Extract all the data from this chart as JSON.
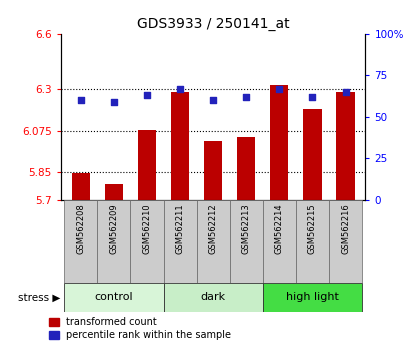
{
  "title": "GDS3933 / 250141_at",
  "samples": [
    "GSM562208",
    "GSM562209",
    "GSM562210",
    "GSM562211",
    "GSM562212",
    "GSM562213",
    "GSM562214",
    "GSM562215",
    "GSM562216"
  ],
  "red_values": [
    5.845,
    5.785,
    6.08,
    6.285,
    6.02,
    6.04,
    6.32,
    6.19,
    6.285
  ],
  "blue_values": [
    60,
    59,
    63,
    67,
    60,
    62,
    67,
    62,
    65
  ],
  "ylim_left": [
    5.7,
    6.6
  ],
  "ylim_right": [
    0,
    100
  ],
  "yticks_left": [
    5.7,
    5.85,
    6.075,
    6.3,
    6.6
  ],
  "ytick_labels_left": [
    "5.7",
    "5.85",
    "6.075",
    "6.3",
    "6.6"
  ],
  "yticks_right": [
    0,
    25,
    50,
    75,
    100
  ],
  "ytick_labels_right": [
    "0",
    "25",
    "50",
    "75",
    "100%"
  ],
  "grid_lines": [
    5.85,
    6.075,
    6.3
  ],
  "groups": [
    {
      "label": "control",
      "indices": [
        0,
        1,
        2
      ],
      "color": "#d8f5d8"
    },
    {
      "label": "dark",
      "indices": [
        3,
        4,
        5
      ],
      "color": "#c8eec8"
    },
    {
      "label": "high light",
      "indices": [
        6,
        7,
        8
      ],
      "color": "#44dd44"
    }
  ],
  "bar_color": "#bb0000",
  "dot_color": "#2222bb",
  "bar_width": 0.55,
  "label_red": "transformed count",
  "label_blue": "percentile rank within the sample",
  "stress_arrow": "stress ▶"
}
